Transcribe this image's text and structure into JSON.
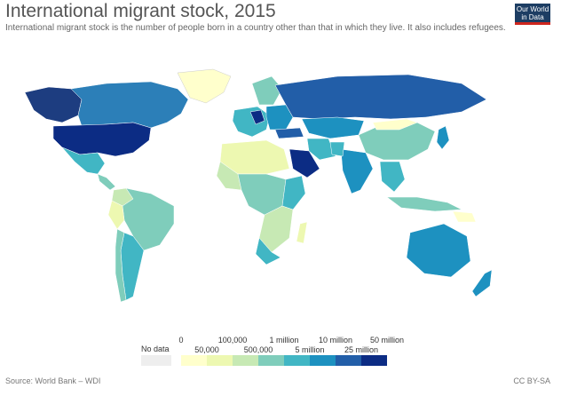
{
  "header": {
    "title": "International migrant stock, 2015",
    "subtitle": "International migrant stock is the number of people born in a country other than that in which they live. It also includes refugees."
  },
  "logo": {
    "line1": "Our World",
    "line2": "in Data"
  },
  "legend": {
    "no_data": "No data",
    "top_labels": [
      "0",
      "100,000",
      "1 million",
      "10 million",
      "50 million"
    ],
    "bottom_labels": [
      "50,000",
      "500,000",
      "5 million",
      "25 million"
    ],
    "colors": [
      "#ffffcc",
      "#edf8b1",
      "#c7e9b4",
      "#7fcdbb",
      "#41b6c4",
      "#1d91c0",
      "#225ea8",
      "#0c2c84"
    ],
    "no_data_color": "#eeeeee"
  },
  "footer": {
    "source": "Source: World Bank – WDI",
    "license": "CC BY-SA"
  }
}
